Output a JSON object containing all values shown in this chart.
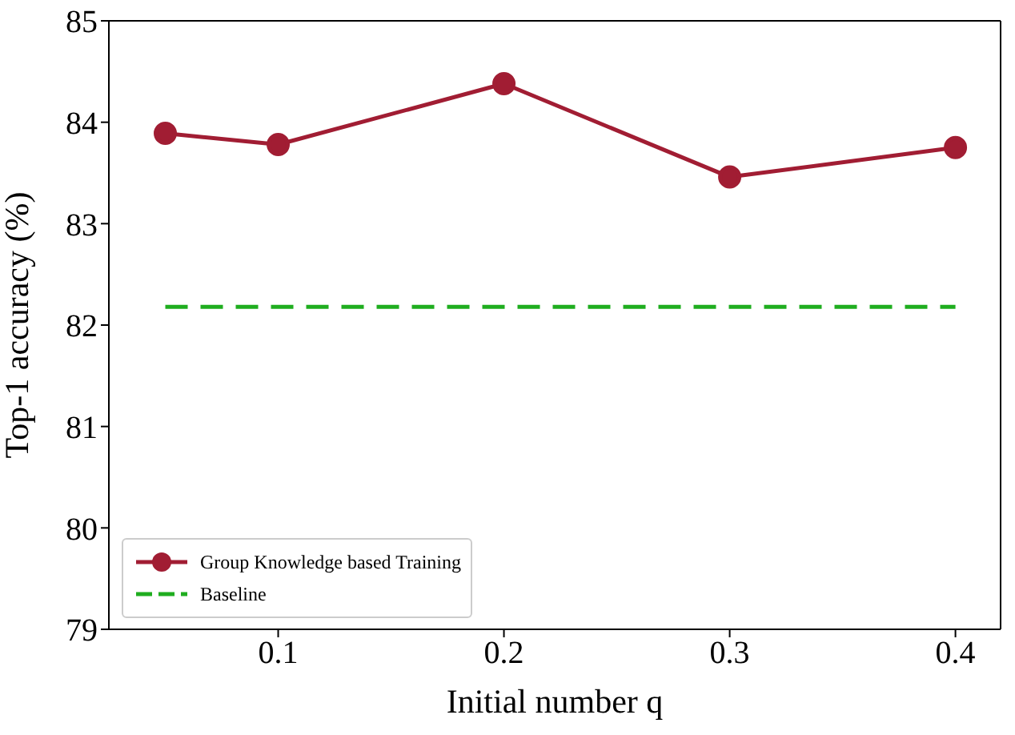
{
  "chart_data": {
    "type": "line",
    "xlabel": "Initial number q",
    "ylabel": "Top-1 accuracy (%)",
    "x": [
      0.05,
      0.1,
      0.2,
      0.3,
      0.4
    ],
    "series": [
      {
        "name": "Group Knowledge based Training",
        "color": "#a11d33",
        "values": [
          83.89,
          83.78,
          84.38,
          83.46,
          83.75
        ],
        "marker": "circle",
        "line_style": "solid"
      },
      {
        "name": "Baseline",
        "color": "#1fad1f",
        "values": [
          82.18,
          82.18,
          82.18,
          82.18,
          82.18
        ],
        "marker": "none",
        "line_style": "dashed"
      }
    ],
    "xlim": [
      0.025,
      0.42
    ],
    "xticks": [
      0.1,
      0.2,
      0.3,
      0.4
    ],
    "ylim": [
      79,
      85
    ],
    "yticks": [
      79,
      80,
      81,
      82,
      83,
      84,
      85
    ],
    "grid": false,
    "legend": "bottom left"
  }
}
